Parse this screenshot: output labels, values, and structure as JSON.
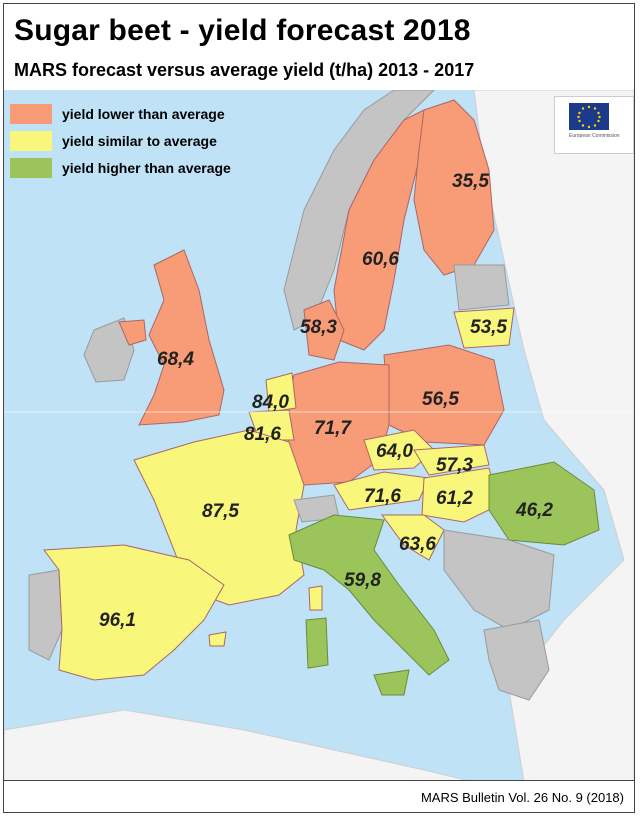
{
  "title": "Sugar beet - yield forecast 2018",
  "subtitle": "MARS forecast versus average yield (t/ha) 2013 - 2017",
  "source": "MARS Bulletin Vol. 26 No. 9 (2018)",
  "logo": {
    "org_text": "European Commission",
    "icon": "eu-flag-icon"
  },
  "colors": {
    "lower": "#f89c77",
    "similar": "#f8f67b",
    "higher": "#9bc55a",
    "no_data": "#c4c4c4",
    "non_eu": "#f4f4f4",
    "sea": "#bfe2f6"
  },
  "legend": [
    {
      "key": "lower",
      "label": "yield lower than average"
    },
    {
      "key": "similar",
      "label": "yield similar to average"
    },
    {
      "key": "higher",
      "label": "yield higher than average"
    }
  ],
  "values": [
    {
      "category": "lower",
      "value": "35,5"
    },
    {
      "category": "lower",
      "value": "60,6"
    },
    {
      "category": "lower",
      "value": "58,3"
    },
    {
      "category": "lower",
      "value": "68,4"
    },
    {
      "category": "similar",
      "value": "53,5"
    },
    {
      "category": "lower",
      "value": "56,5"
    },
    {
      "category": "similar",
      "value": "84,0"
    },
    {
      "category": "similar",
      "value": "81,6"
    },
    {
      "category": "lower",
      "value": "71,7"
    },
    {
      "category": "similar",
      "value": "64,0"
    },
    {
      "category": "similar",
      "value": "57,3"
    },
    {
      "category": "similar",
      "value": "71,6"
    },
    {
      "category": "similar",
      "value": "61,2"
    },
    {
      "category": "higher",
      "value": "46,2"
    },
    {
      "category": "similar",
      "value": "87,5"
    },
    {
      "category": "similar",
      "value": "63,6"
    },
    {
      "category": "higher",
      "value": "59,8"
    },
    {
      "category": "similar",
      "value": "96,1"
    }
  ]
}
